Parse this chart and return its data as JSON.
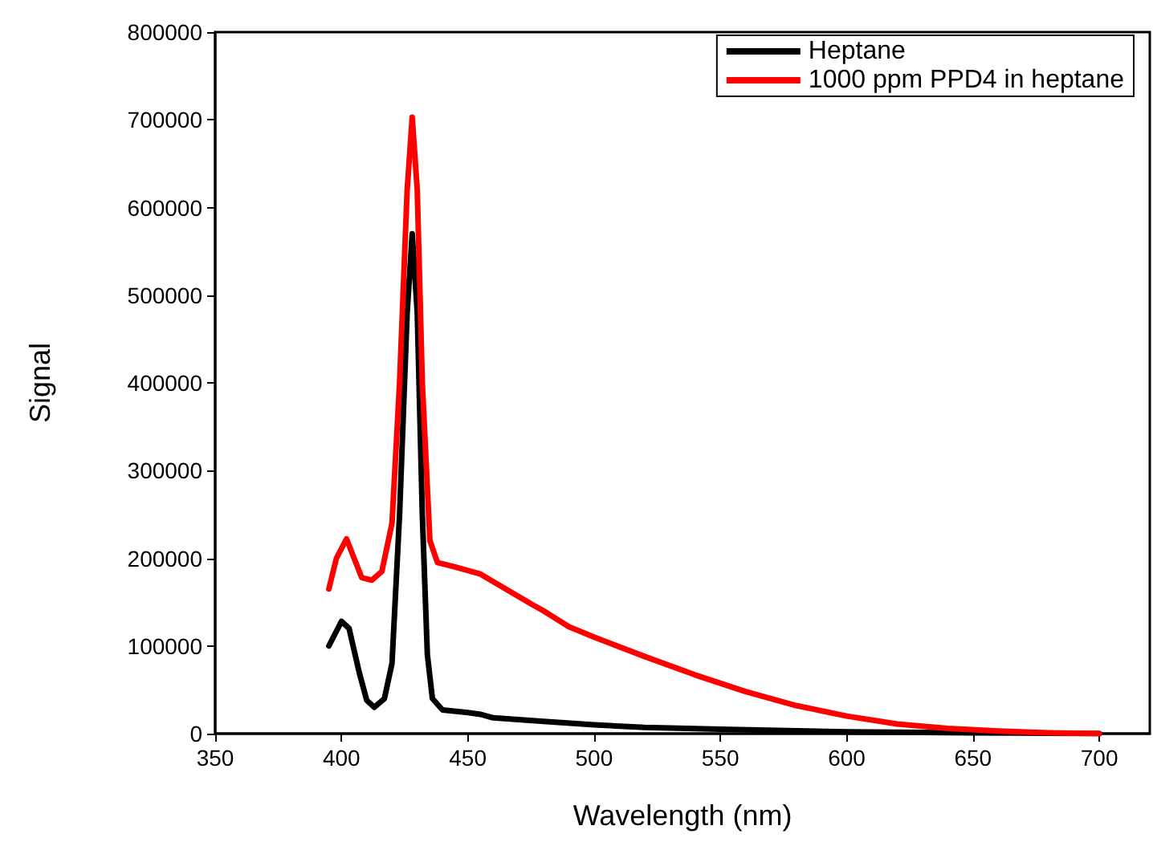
{
  "chart_data": {
    "type": "line",
    "xlabel": "Wavelength (nm)",
    "ylabel": "Signal",
    "xlim": [
      350,
      720
    ],
    "xticks": [
      350,
      400,
      450,
      500,
      550,
      600,
      650,
      700
    ],
    "ylim": [
      0,
      800000
    ],
    "yticks": [
      0,
      100000,
      200000,
      300000,
      400000,
      500000,
      600000,
      700000,
      800000
    ],
    "grid": false,
    "legend": "top right",
    "marker": "none",
    "line_style": "solid",
    "series": [
      {
        "name": "Heptane",
        "color": "#000000",
        "x": [
          395,
          400,
          403,
          407,
          410,
          413,
          417,
          420,
          423,
          426,
          428,
          430,
          432,
          434,
          436,
          440,
          450,
          455,
          460,
          480,
          500,
          520,
          550,
          600,
          650,
          700
        ],
        "values": [
          100000,
          128000,
          120000,
          70000,
          38000,
          30000,
          40000,
          80000,
          250000,
          480000,
          570000,
          480000,
          250000,
          90000,
          40000,
          27000,
          24000,
          22000,
          18000,
          14000,
          10000,
          7000,
          5000,
          2000,
          1000,
          0
        ]
      },
      {
        "name": "1000 ppm PPD4 in heptane",
        "color": "#ff0000",
        "x": [
          395,
          398,
          402,
          405,
          408,
          412,
          416,
          420,
          423,
          426,
          428,
          430,
          432,
          435,
          438,
          445,
          455,
          465,
          475,
          480,
          490,
          500,
          520,
          540,
          560,
          580,
          600,
          620,
          640,
          660,
          680,
          700
        ],
        "values": [
          165000,
          200000,
          222000,
          200000,
          178000,
          175000,
          185000,
          240000,
          400000,
          620000,
          703000,
          620000,
          400000,
          220000,
          195000,
          190000,
          182000,
          165000,
          148000,
          140000,
          122000,
          110000,
          88000,
          67000,
          48000,
          32000,
          20000,
          11000,
          6000,
          3000,
          1000,
          0
        ]
      }
    ]
  }
}
